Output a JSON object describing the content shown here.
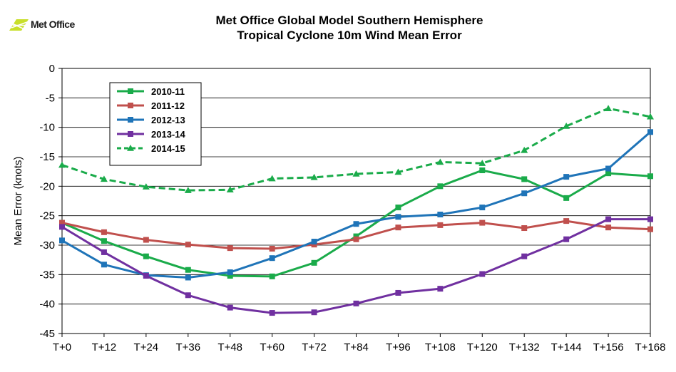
{
  "logo": {
    "text": "Met Office",
    "color": "#c8df2a"
  },
  "chart_data": {
    "type": "line",
    "title": "Met Office Global Model Southern Hemisphere",
    "subtitle": "Tropical Cyclone 10m Wind Mean Error",
    "xlabel": "",
    "ylabel": "Mean Error (knots)",
    "ylim": [
      -45,
      0
    ],
    "yticks": [
      0,
      -5,
      -10,
      -15,
      -20,
      -25,
      -30,
      -35,
      -40,
      -45
    ],
    "grid": true,
    "legend_position": "top-left",
    "categories": [
      "T+0",
      "T+12",
      "T+24",
      "T+36",
      "T+48",
      "T+60",
      "T+72",
      "T+84",
      "T+96",
      "T+108",
      "T+120",
      "T+132",
      "T+144",
      "T+156",
      "T+168"
    ],
    "series": [
      {
        "name": "2010-11",
        "color": "#1aab4a",
        "marker": "square",
        "dashed": false,
        "values": [
          -26.2,
          -29.3,
          -31.9,
          -34.2,
          -35.2,
          -35.3,
          -33.0,
          -28.5,
          -23.6,
          -20.0,
          -17.3,
          -18.8,
          -22.0,
          -17.8,
          -18.3
        ]
      },
      {
        "name": "2011-12",
        "color": "#c0504d",
        "marker": "square",
        "dashed": false,
        "values": [
          -26.2,
          -27.8,
          -29.1,
          -29.9,
          -30.5,
          -30.6,
          -29.9,
          -29.0,
          -27.0,
          -26.6,
          -26.2,
          -27.1,
          -25.9,
          -27.0,
          -27.3
        ]
      },
      {
        "name": "2012-13",
        "color": "#1f74b8",
        "marker": "square",
        "dashed": false,
        "values": [
          -29.2,
          -33.3,
          -35.1,
          -35.5,
          -34.6,
          -32.2,
          -29.4,
          -26.4,
          -25.2,
          -24.8,
          -23.6,
          -21.2,
          -18.4,
          -17.0,
          -10.8
        ]
      },
      {
        "name": "2013-14",
        "color": "#7030a0",
        "marker": "square",
        "dashed": false,
        "values": [
          -26.9,
          -31.2,
          -35.2,
          -38.5,
          -40.6,
          -41.5,
          -41.4,
          -39.9,
          -38.1,
          -37.4,
          -34.9,
          -31.9,
          -29.0,
          -25.6,
          -25.6
        ]
      },
      {
        "name": "2014-15",
        "color": "#1aab4a",
        "marker": "triangle",
        "dashed": true,
        "values": [
          -16.4,
          -18.8,
          -20.1,
          -20.7,
          -20.6,
          -18.7,
          -18.5,
          -17.9,
          -17.6,
          -15.9,
          -16.1,
          -13.9,
          -9.8,
          -6.8,
          -8.2
        ]
      }
    ]
  }
}
